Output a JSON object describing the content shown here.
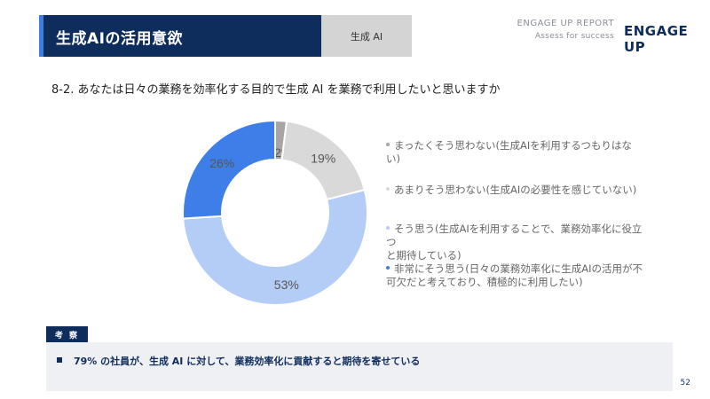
{
  "header": {
    "title": "生成AIの活用意欲",
    "tab_label": "生成 AI",
    "report_label": "ENGAGE UP REPORT",
    "report_sub": "Assess for success",
    "logo_text": "ENGAGE UP"
  },
  "question": "8-2.   あなたは日々の業務を効率化する目的で生成 AI を業務で利用したいと思いますか",
  "chart_data": {
    "type": "pie",
    "donut": true,
    "title": "",
    "series": [
      {
        "name": "まったくそう思わない(生成AIを利用するつもりはない)",
        "value": 2,
        "label": "2%",
        "color": "#a6a6a6"
      },
      {
        "name": "あまりそう思わない(生成AIの必要性を感じていない)",
        "value": 19,
        "label": "19%",
        "color": "#d9d9d9"
      },
      {
        "name": "そう思う(生成AIを利用することで、業務効率化に役立つと期待している)",
        "value": 53,
        "label": "53%",
        "color": "#b4cdf7"
      },
      {
        "name": "非常にそう思う(日々の業務効率化に生成AIの活用が不可欠だと考えており、積極的に利用したい)",
        "value": 26,
        "label": "26%",
        "color": "#3d7ee8"
      }
    ]
  },
  "legend": [
    {
      "line1": "まったくそう思わない(生成AIを利用するつもりはない)",
      "line2": ""
    },
    {
      "line1": "あまりそう思わない(生成AIの必要性を感じていない)",
      "line2": ""
    },
    {
      "line1": "そう思う(生成AIを利用することで、業務効率化に役立つ",
      "line2": "と期待している)"
    },
    {
      "line1": "非常にそう思う(日々の業務効率化に生成AIの活用が不",
      "line2": "可欠だと考えており、積極的に利用したい)"
    }
  ],
  "insight": {
    "tag": "考 察",
    "text": "79% の社員が、生成 AI に対して、業務効率化に貢献すると期待を寄せている"
  },
  "page_number": "52"
}
